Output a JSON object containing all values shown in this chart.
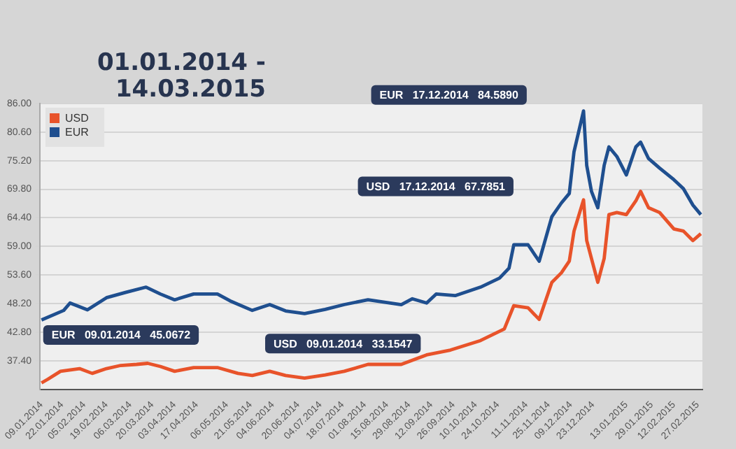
{
  "chart_data": {
    "type": "line",
    "title": "01.01.2014 - 14.03.2015",
    "xlim": [
      "2014-01-08",
      "2015-03-02"
    ],
    "xticks": [
      {
        "value": "2014-01-09",
        "label": "09.01.2014"
      },
      {
        "value": "2014-01-22",
        "label": "22.01.2014"
      },
      {
        "value": "2014-02-05",
        "label": "05.02.2014"
      },
      {
        "value": "2014-02-19",
        "label": "19.02.2014"
      },
      {
        "value": "2014-03-06",
        "label": "06.03.2014"
      },
      {
        "value": "2014-03-20",
        "label": "20.03.2014"
      },
      {
        "value": "2014-04-03",
        "label": "03.04.2014"
      },
      {
        "value": "2014-04-17",
        "label": "17.04.2014"
      },
      {
        "value": "2014-05-06",
        "label": "06.05.2014"
      },
      {
        "value": "2014-05-21",
        "label": "21.05.2014"
      },
      {
        "value": "2014-06-04",
        "label": "04.06.2014"
      },
      {
        "value": "2014-06-20",
        "label": "20.06.2014"
      },
      {
        "value": "2014-07-04",
        "label": "04.07.2014"
      },
      {
        "value": "2014-07-18",
        "label": "18.07.2014"
      },
      {
        "value": "2014-08-01",
        "label": "01.08.2014"
      },
      {
        "value": "2014-08-15",
        "label": "15.08.2014"
      },
      {
        "value": "2014-08-29",
        "label": "29.08.2014"
      },
      {
        "value": "2014-09-12",
        "label": "12.09.2014"
      },
      {
        "value": "2014-09-26",
        "label": "26.09.2014"
      },
      {
        "value": "2014-10-10",
        "label": "10.10.2014"
      },
      {
        "value": "2014-10-24",
        "label": "24.10.2014"
      },
      {
        "value": "2014-11-11",
        "label": "11.11.2014"
      },
      {
        "value": "2014-11-25",
        "label": "25.11.2014"
      },
      {
        "value": "2014-12-09",
        "label": "09.12.2014"
      },
      {
        "value": "2014-12-23",
        "label": "23.12.2014"
      },
      {
        "value": "2015-01-13",
        "label": "13.01.2015"
      },
      {
        "value": "2015-01-29",
        "label": "29.01.2015"
      },
      {
        "value": "2015-02-12",
        "label": "12.02.2015"
      },
      {
        "value": "2015-02-27",
        "label": "27.02.2015"
      }
    ],
    "ylim": [
      32,
      86
    ],
    "yticks": [
      {
        "value": 86,
        "label": "86.00"
      },
      {
        "value": 80.6,
        "label": "80.60"
      },
      {
        "value": 75.2,
        "label": "75.20"
      },
      {
        "value": 69.8,
        "label": "69.80"
      },
      {
        "value": 64.4,
        "label": "64.40"
      },
      {
        "value": 59,
        "label": "59.00"
      },
      {
        "value": 53.6,
        "label": "53.60"
      },
      {
        "value": 48.2,
        "label": "48.20"
      },
      {
        "value": 42.8,
        "label": "42.80"
      },
      {
        "value": 37.4,
        "label": "37.40"
      }
    ],
    "grid": "y",
    "legend": "top left",
    "marker": "none",
    "line_style": "solid",
    "series": [
      {
        "name": "USD",
        "color": "#e8532a",
        "x": [
          "2014-01-09",
          "2014-01-13",
          "2014-01-21",
          "2014-02-02",
          "2014-02-10",
          "2014-02-19",
          "2014-02-28",
          "2014-03-10",
          "2014-03-17",
          "2014-03-25",
          "2014-04-03",
          "2014-04-15",
          "2014-04-30",
          "2014-05-13",
          "2014-05-22",
          "2014-06-02",
          "2014-06-12",
          "2014-06-24",
          "2014-07-07",
          "2014-07-19",
          "2014-08-03",
          "2014-08-24",
          "2014-09-09",
          "2014-09-24",
          "2014-10-13",
          "2014-10-28",
          "2014-11-03",
          "2014-11-12",
          "2014-11-19",
          "2014-11-27",
          "2014-12-03",
          "2014-12-08",
          "2014-12-11",
          "2014-12-17",
          "2014-12-19",
          "2014-12-22",
          "2014-12-26",
          "2014-12-30",
          "2015-01-02",
          "2015-01-07",
          "2015-01-13",
          "2015-01-19",
          "2015-01-22",
          "2015-01-27",
          "2015-02-03",
          "2015-02-12",
          "2015-02-18",
          "2015-02-24",
          "2015-03-01"
        ],
        "values": [
          33.2,
          33.9,
          35.4,
          35.9,
          35,
          35.9,
          36.5,
          36.7,
          36.9,
          36.3,
          35.4,
          36.1,
          36.1,
          35,
          34.6,
          35.4,
          34.6,
          34.1,
          34.7,
          35.4,
          36.7,
          36.7,
          38.5,
          39.4,
          41.2,
          43.4,
          47.8,
          47.4,
          45.2,
          52.2,
          54,
          56.2,
          61.9,
          67.8,
          60.1,
          56.7,
          52.2,
          56.7,
          65,
          65.4,
          65,
          67.6,
          69.4,
          66.3,
          65.4,
          62.3,
          61.9,
          60.1,
          61.4
        ]
      },
      {
        "name": "EUR",
        "color": "#1f4f8f",
        "x": [
          "2014-01-09",
          "2014-01-23",
          "2014-01-27",
          "2014-02-07",
          "2014-02-19",
          "2014-03-03",
          "2014-03-16",
          "2014-03-25",
          "2014-04-03",
          "2014-04-15",
          "2014-04-30",
          "2014-05-08",
          "2014-05-22",
          "2014-06-02",
          "2014-06-12",
          "2014-06-24",
          "2014-07-07",
          "2014-07-19",
          "2014-08-03",
          "2014-08-24",
          "2014-08-31",
          "2014-09-09",
          "2014-09-15",
          "2014-09-27",
          "2014-10-13",
          "2014-10-25",
          "2014-10-31",
          "2014-11-03",
          "2014-11-12",
          "2014-11-19",
          "2014-11-27",
          "2014-12-03",
          "2014-12-08",
          "2014-12-11",
          "2014-12-17",
          "2014-12-19",
          "2014-12-22",
          "2014-12-26",
          "2014-12-30",
          "2015-01-02",
          "2015-01-07",
          "2015-01-13",
          "2015-01-19",
          "2015-01-22",
          "2015-01-27",
          "2015-02-03",
          "2015-02-12",
          "2015-02-18",
          "2015-02-24",
          "2015-03-01"
        ],
        "values": [
          45.1,
          46.9,
          48.3,
          47,
          49.3,
          50.3,
          51.3,
          50,
          48.9,
          50,
          50,
          48.7,
          46.9,
          48,
          46.8,
          46.3,
          47.1,
          48,
          48.9,
          48,
          49.1,
          48.3,
          50,
          49.7,
          51.3,
          53,
          54.9,
          59.3,
          59.3,
          56.2,
          64.6,
          67.2,
          69,
          76.9,
          84.6,
          74.3,
          69.4,
          66.3,
          74.3,
          77.8,
          76,
          72.5,
          77.8,
          78.7,
          75.6,
          73.8,
          71.6,
          69.9,
          66.8,
          65
        ]
      }
    ],
    "annotations": [
      "EUR   17.12.2014   84.5890",
      "USD   17.12.2014   67.7851",
      "EUR   09.01.2014   45.0672",
      "USD   09.01.2014   33.1547"
    ]
  }
}
